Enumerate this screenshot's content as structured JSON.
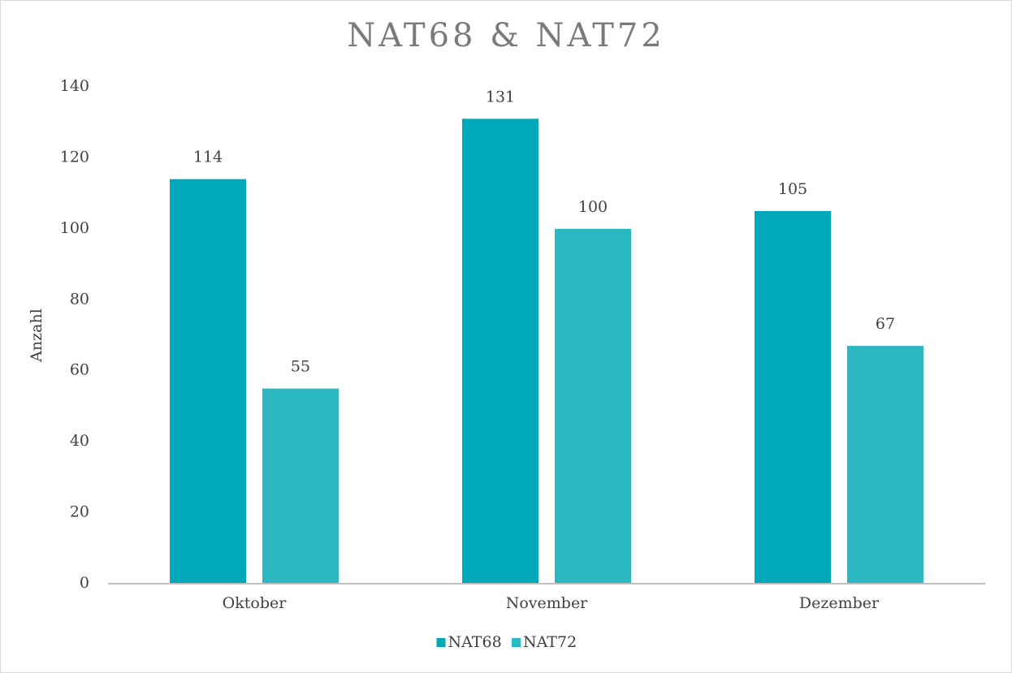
{
  "chart_data": {
    "type": "bar",
    "title": "NAT68 & NAT72",
    "y_label": "Anzahl",
    "categories": [
      "Oktober",
      "November",
      "Dezember"
    ],
    "series": [
      {
        "name": "NAT68",
        "color": "#00a9b8",
        "values": [
          114,
          131,
          105
        ]
      },
      {
        "name": "NAT72",
        "color": "#2bb8c2",
        "values": [
          55,
          100,
          67
        ]
      }
    ],
    "ylim": [
      0,
      140
    ],
    "yticks": [
      0,
      20,
      40,
      60,
      80,
      100,
      120,
      140
    ],
    "grid": false,
    "legend": "bottom"
  }
}
